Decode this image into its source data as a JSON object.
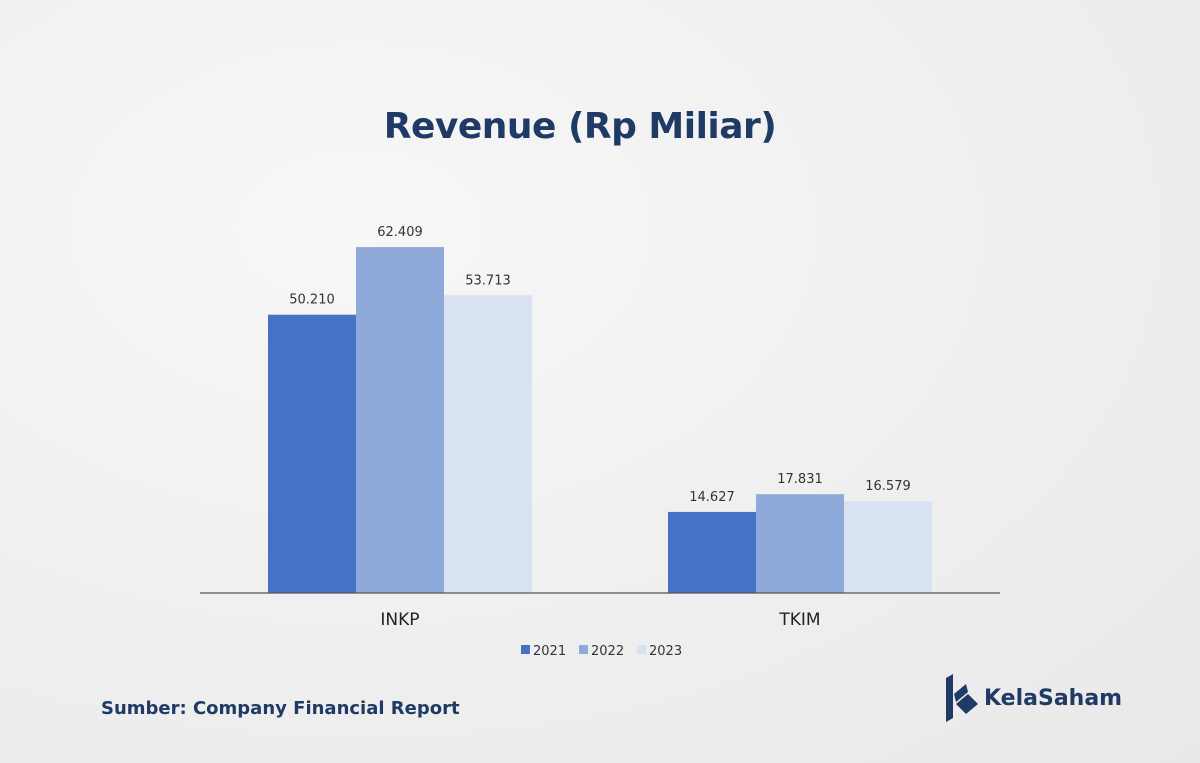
{
  "chart_data": {
    "type": "bar",
    "title": "Revenue (Rp Miliar)",
    "categories": [
      "INKP",
      "TKIM"
    ],
    "series": [
      {
        "name": "2021",
        "values": [
          50210,
          14627
        ],
        "labels": [
          "50.210",
          "14.627"
        ],
        "color": "#4472c4"
      },
      {
        "name": "2022",
        "values": [
          62409,
          17831
        ],
        "labels": [
          "62.409",
          "17.831"
        ],
        "color": "#8eaadb"
      },
      {
        "name": "2023",
        "values": [
          53713,
          16579
        ],
        "labels": [
          "53.713",
          "16.579"
        ],
        "color": "#d9e2f3"
      }
    ],
    "ylim": [
      0,
      70000
    ],
    "grid": false,
    "legend": "bottom-center"
  },
  "footer": {
    "source": "Sumber: Company Financial Report"
  },
  "brand": {
    "name": "KelaSaham",
    "icon": "kelasaham-logo-icon",
    "color": "#1f3a64"
  }
}
